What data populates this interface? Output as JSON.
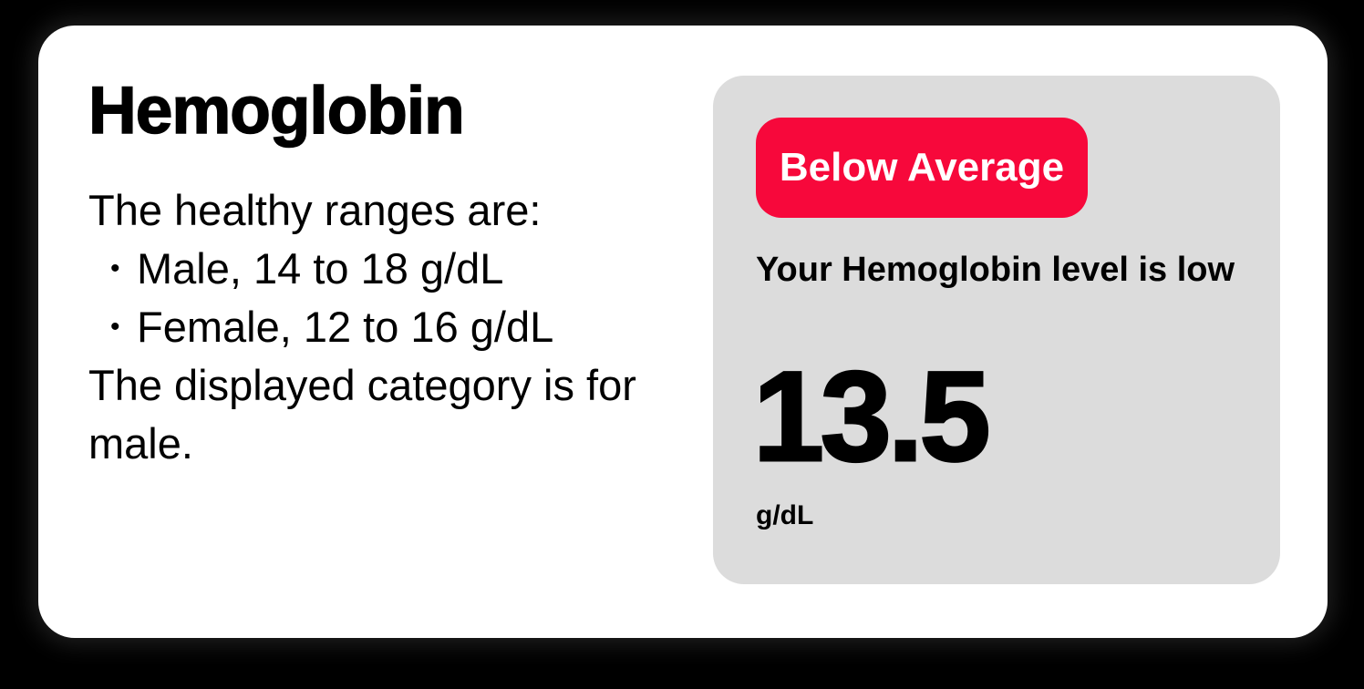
{
  "card": {
    "title": "Hemoglobin",
    "description": {
      "intro": "The healthy ranges are:",
      "bullet_glyph": "•",
      "bullets": [
        "Male, 14 to 18 g/dL",
        "Female, 12 to 16 g/dL"
      ],
      "note": "The displayed category is for male."
    },
    "result_panel": {
      "badge_label": "Below Average",
      "status_text": "Your Hemoglobin level is low",
      "value": "13.5",
      "unit": "g/dL"
    },
    "colors": {
      "background": "#000000",
      "card_bg": "#FFFFFF",
      "panel_bg": "#DCDCDC",
      "badge_bg": "#F7083B",
      "badge_text": "#FFFFFF",
      "text": "#000000"
    }
  }
}
